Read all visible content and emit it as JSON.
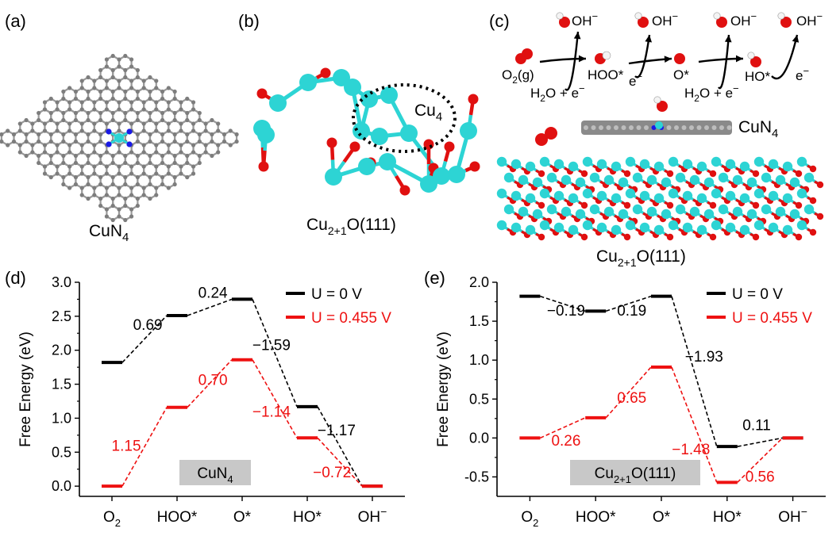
{
  "panel_labels": [
    "(a)",
    "(b)",
    "(c)",
    "(d)",
    "(e)"
  ],
  "structures": {
    "a_caption": "CuN",
    "a_caption_sub": "4",
    "b_caption": "Cu",
    "b_caption_sub": "2+1",
    "b_caption_tail": "O(111)",
    "b_cluster_label": "Cu",
    "b_cluster_label_sub": "4",
    "c_catalyst_label": "CuN",
    "c_catalyst_label_sub": "4",
    "c_caption": "Cu",
    "c_caption_sub": "2+1",
    "c_caption_tail": "O(111)",
    "c_mechanism": {
      "o2_gas": "O",
      "o2_gas_sub": "2",
      "o2_gas_tail": "(g)",
      "hoo": "HOO*",
      "o": "O*",
      "ho": "HO*",
      "oh_minus": "OH",
      "minus": "−",
      "h2o_e": "H",
      "h2o_sub": "2",
      "h2o_tail": "O + e",
      "e_minus": "e"
    },
    "colors": {
      "cu": "#2dd4d4",
      "o": "#e01010",
      "n": "#1a1ae6",
      "c": "#808080",
      "h": "#f4f4f4"
    }
  },
  "chart_data": [
    {
      "type": "line",
      "panel": "(d)",
      "ylabel": "Free Energy (eV)",
      "ylim": [
        -0.15,
        3.0
      ],
      "yticks": [
        "0.0",
        "0.5",
        "1.0",
        "1.5",
        "2.0",
        "2.5",
        "3.0"
      ],
      "categories": [
        "O2",
        "HOO*",
        "O*",
        "HO*",
        "OH−"
      ],
      "category_main": [
        "O",
        "HOO*",
        "O*",
        "HO*",
        "OH"
      ],
      "category_sub": [
        "2",
        "",
        "",
        "",
        ""
      ],
      "category_sup": [
        "",
        "",
        "",
        "",
        "−"
      ],
      "series": [
        {
          "name": "U = 0 V",
          "color": "#000000",
          "values": [
            1.82,
            2.51,
            2.75,
            1.17,
            0.0
          ]
        },
        {
          "name": "U = 0.455 V",
          "color": "#ee1111",
          "values": [
            0.0,
            1.16,
            1.86,
            0.71,
            0.0
          ]
        }
      ],
      "step_labels": [
        {
          "series": 0,
          "text": "0.69",
          "x": 0.55,
          "y": 2.3
        },
        {
          "series": 0,
          "text": "0.24",
          "x": 1.55,
          "y": 2.77
        },
        {
          "series": 0,
          "text": "−1.59",
          "x": 2.45,
          "y": 2.0
        },
        {
          "series": 0,
          "text": "−1.17",
          "x": 3.45,
          "y": 0.75
        },
        {
          "series": 1,
          "text": "1.15",
          "x": 0.22,
          "y": 0.52
        },
        {
          "series": 1,
          "text": "0.70",
          "x": 1.55,
          "y": 1.49
        },
        {
          "series": 1,
          "text": "−1.14",
          "x": 2.45,
          "y": 1.02
        },
        {
          "series": 1,
          "text": "−0.72",
          "x": 3.38,
          "y": 0.13
        }
      ],
      "box_label": "CuN",
      "box_label_sub": "4",
      "legend": "top-right"
    },
    {
      "type": "line",
      "panel": "(e)",
      "ylabel": "Free Energy (eV)",
      "ylim": [
        -0.75,
        2.0
      ],
      "yticks": [
        "-0.5",
        "0.0",
        "0.5",
        "1.0",
        "1.5",
        "2.0"
      ],
      "categories": [
        "O2",
        "HOO*",
        "O*",
        "HO*",
        "OH−"
      ],
      "category_main": [
        "O",
        "HOO*",
        "O*",
        "HO*",
        "OH"
      ],
      "category_sub": [
        "2",
        "",
        "",
        "",
        ""
      ],
      "category_sup": [
        "",
        "",
        "",
        "",
        "−"
      ],
      "series": [
        {
          "name": "U = 0 V",
          "color": "#000000",
          "values": [
            1.82,
            1.63,
            1.82,
            -0.11,
            0.0
          ]
        },
        {
          "name": "U = 0.455 V",
          "color": "#ee1111",
          "values": [
            0.0,
            0.26,
            0.91,
            -0.57,
            0.0
          ]
        }
      ],
      "step_labels": [
        {
          "series": 0,
          "text": "−0.19",
          "x": 0.55,
          "y": 1.57
        },
        {
          "series": 0,
          "text": "0.19",
          "x": 1.55,
          "y": 1.57
        },
        {
          "series": 0,
          "text": "−1.93",
          "x": 2.65,
          "y": 0.98
        },
        {
          "series": 0,
          "text": "0.11",
          "x": 3.45,
          "y": 0.1
        },
        {
          "series": 1,
          "text": "0.26",
          "x": 0.55,
          "y": -0.1
        },
        {
          "series": 1,
          "text": "0.65",
          "x": 1.55,
          "y": 0.45
        },
        {
          "series": 1,
          "text": "−1.48",
          "x": 2.45,
          "y": -0.21
        },
        {
          "series": 1,
          "text": "0.56",
          "x": 3.5,
          "y": -0.56
        }
      ],
      "box_label": "Cu",
      "box_label_sub": "2+1",
      "box_label_tail": "O(111)",
      "legend": "top-right"
    }
  ]
}
